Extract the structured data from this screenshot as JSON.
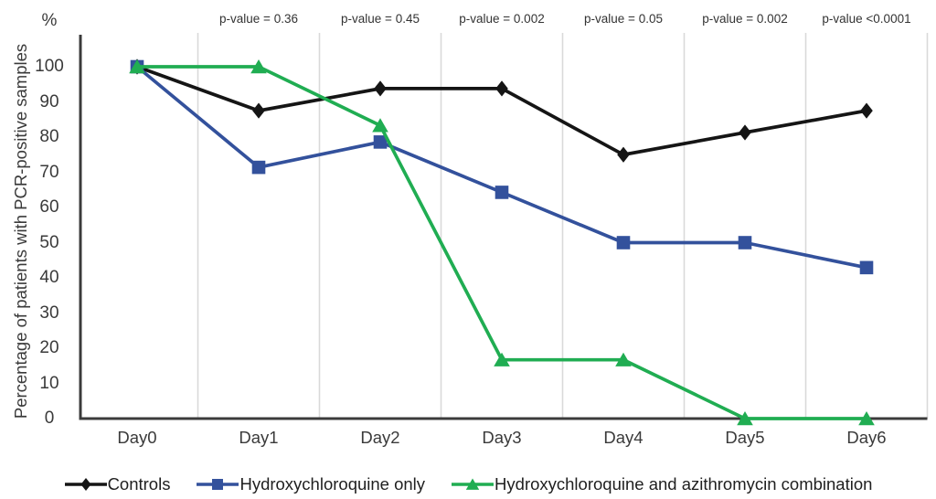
{
  "colors": {
    "background": "#ffffff",
    "axis": "#3b3b3b",
    "gridline": "#d9d9d9",
    "text": "#3a3a3a"
  },
  "chart_data": {
    "type": "line",
    "title": "",
    "percent_symbol": "%",
    "ylabel": "Percentage of patients with PCR-positive samples",
    "xlabel": "",
    "categories": [
      "Day0",
      "Day1",
      "Day2",
      "Day3",
      "Day4",
      "Day5",
      "Day6"
    ],
    "yticks": [
      0,
      10,
      20,
      30,
      40,
      50,
      60,
      70,
      80,
      90,
      100
    ],
    "ylim": [
      0,
      100
    ],
    "grid": "vertical gridlines between category columns",
    "legend_position": "bottom",
    "p_values": [
      "p-value = 0.36",
      "p-value = 0.45",
      "p-value = 0.002",
      "p-value = 0.05",
      "p-value = 0.002",
      "p-value <0.0001"
    ],
    "series": [
      {
        "name": "Controls",
        "marker": "diamond",
        "color": "#151515",
        "values": [
          100,
          87.5,
          93.8,
          93.8,
          75,
          81.3,
          87.5
        ]
      },
      {
        "name": "Hydroxychloroquine only",
        "marker": "square",
        "color": "#33519c",
        "values": [
          100,
          71.4,
          78.6,
          64.3,
          50,
          50,
          42.9
        ]
      },
      {
        "name": "Hydroxychloroquine and azithromycin combination",
        "marker": "triangle",
        "color": "#20ad52",
        "values": [
          100,
          100,
          83.3,
          16.7,
          16.7,
          0,
          0
        ]
      }
    ]
  }
}
